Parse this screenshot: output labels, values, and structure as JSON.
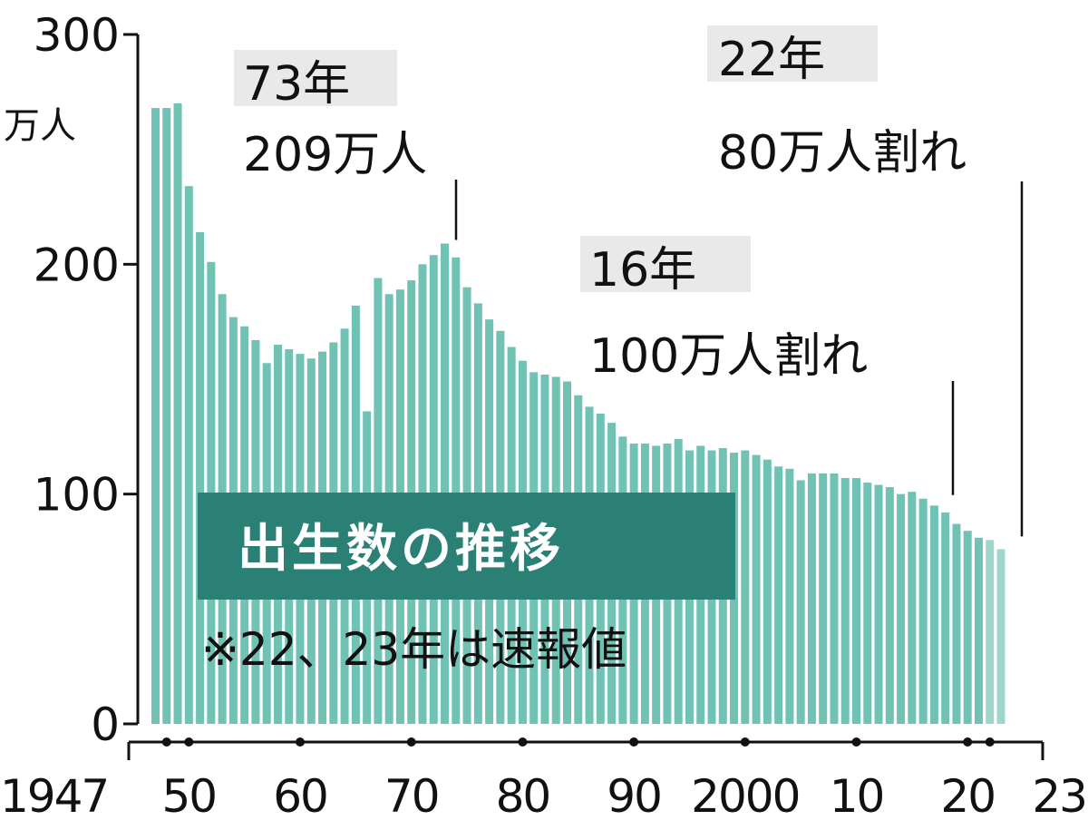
{
  "colors": {
    "bar": "#6fc2b4",
    "bar_prelim": "#9fd6cc",
    "title_box": "#2a8075",
    "axis": "#111111"
  },
  "chart_data": {
    "type": "bar",
    "title": "出生数の推移",
    "note": "※22、23年は速報値",
    "y_unit": [
      "万人"
    ],
    "ylim": [
      0,
      300
    ],
    "y_ticks": [
      "0",
      "100",
      "200",
      "300"
    ],
    "x_tick_labels": [
      {
        "year": 1947,
        "label": "1947"
      },
      {
        "year": 1950,
        "label": "50"
      },
      {
        "year": 1960,
        "label": "60"
      },
      {
        "year": 1970,
        "label": "70"
      },
      {
        "year": 1980,
        "label": "80"
      },
      {
        "year": 1990,
        "label": "90"
      },
      {
        "year": 2000,
        "label": "2000"
      },
      {
        "year": 2010,
        "label": "10"
      },
      {
        "year": 2020,
        "label": "20"
      },
      {
        "year": 2023,
        "label": "23"
      }
    ],
    "x_dot_years": [
      1948,
      1950,
      1960,
      1970,
      1980,
      1990,
      2000,
      2010,
      2020,
      2022
    ],
    "years": [
      1947,
      1948,
      1949,
      1950,
      1951,
      1952,
      1953,
      1954,
      1955,
      1956,
      1957,
      1958,
      1959,
      1960,
      1961,
      1962,
      1963,
      1964,
      1965,
      1966,
      1967,
      1968,
      1969,
      1970,
      1971,
      1972,
      1973,
      1974,
      1975,
      1976,
      1977,
      1978,
      1979,
      1980,
      1981,
      1982,
      1983,
      1984,
      1985,
      1986,
      1987,
      1988,
      1989,
      1990,
      1991,
      1992,
      1993,
      1994,
      1995,
      1996,
      1997,
      1998,
      1999,
      2000,
      2001,
      2002,
      2003,
      2004,
      2005,
      2006,
      2007,
      2008,
      2009,
      2010,
      2011,
      2012,
      2013,
      2014,
      2015,
      2016,
      2017,
      2018,
      2019,
      2020,
      2021,
      2022,
      2023
    ],
    "values": [
      268,
      268,
      270,
      234,
      214,
      201,
      187,
      177,
      173,
      167,
      157,
      165,
      163,
      161,
      159,
      162,
      166,
      172,
      182,
      136,
      194,
      187,
      189,
      193,
      200,
      204,
      209,
      203,
      190,
      183,
      176,
      171,
      164,
      158,
      153,
      152,
      151,
      149,
      143,
      138,
      135,
      131,
      125,
      122,
      122,
      121,
      122,
      124,
      119,
      121,
      119,
      120,
      118,
      119,
      117,
      115,
      112,
      111,
      106,
      109,
      109,
      109,
      107,
      107,
      105,
      104,
      103,
      100,
      101,
      98,
      95,
      92,
      87,
      84,
      81,
      80,
      76
    ],
    "prelim_years": [
      2022,
      2023
    ],
    "annotations": [
      {
        "year_label": "73年",
        "text": "209万人",
        "target_year": 1973
      },
      {
        "year_label": "16年",
        "text": "100万人割れ",
        "target_year": 2016
      },
      {
        "year_label": "22年",
        "text": "80万人割れ",
        "target_year": 2022
      }
    ]
  }
}
